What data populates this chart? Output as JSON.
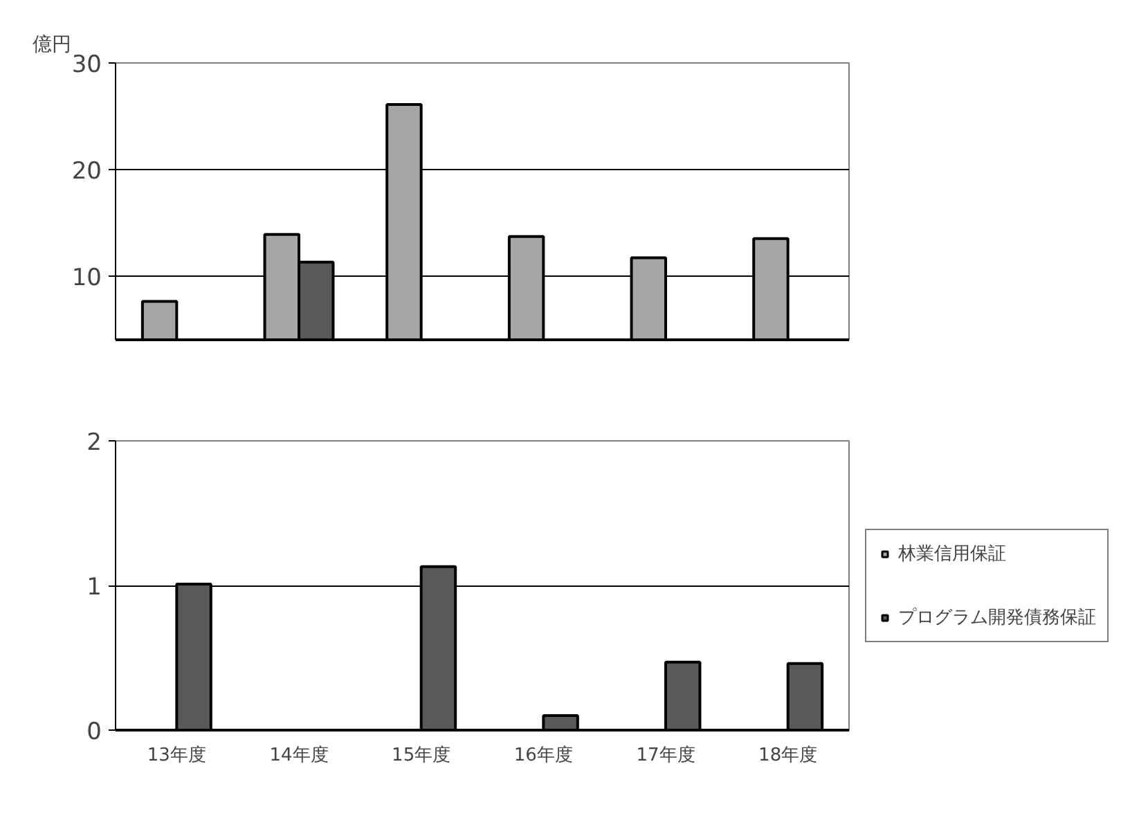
{
  "chart_data": [
    {
      "type": "bar",
      "ylabel": "億円",
      "categories": [
        null,
        null,
        null,
        null,
        null,
        null
      ],
      "ylim": [
        4,
        30
      ],
      "yticks": [
        10,
        20,
        30
      ],
      "grid": "y",
      "tick_labels": "y",
      "series": [
        {
          "color": "#a6a6a6",
          "values": [
            7.6,
            13.9,
            26.1,
            13.7,
            11.7,
            13.5
          ]
        },
        {
          "color": "#595959",
          "values": [
            null,
            11.3,
            null,
            null,
            null,
            null
          ]
        }
      ]
    },
    {
      "type": "bar",
      "categories": [
        "13年度",
        "14年度",
        "15年度",
        "16年度",
        "17年度",
        "18年度"
      ],
      "ylim": [
        0,
        2
      ],
      "yticks": [
        0,
        1,
        2
      ],
      "grid": "y",
      "legend": "right",
      "series": [
        {
          "name": "林業信用保証",
          "color": "#a6a6a6",
          "values": [
            null,
            null,
            null,
            null,
            null,
            null
          ]
        },
        {
          "name": "プログラム開発債務保証",
          "color": "#595959",
          "values": [
            1.01,
            null,
            1.13,
            0.1,
            0.47,
            0.46
          ]
        }
      ]
    }
  ]
}
